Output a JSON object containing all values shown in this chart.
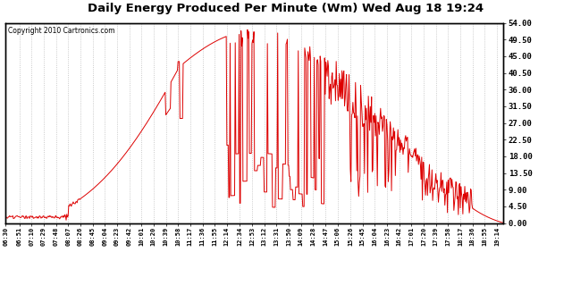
{
  "title": "Daily Energy Produced Per Minute (Wm) Wed Aug 18 19:24",
  "copyright": "Copyright 2010 Cartronics.com",
  "line_color": "#dd0000",
  "background_color": "#ffffff",
  "plot_bg_color": "#ffffff",
  "grid_color": "#bbbbbb",
  "ylim": [
    0,
    54.0
  ],
  "yticks": [
    0.0,
    4.5,
    9.0,
    13.5,
    18.0,
    22.5,
    27.0,
    31.5,
    36.0,
    40.5,
    45.0,
    49.5,
    54.0
  ],
  "xtick_labels": [
    "06:30",
    "06:51",
    "07:10",
    "07:29",
    "07:48",
    "08:07",
    "08:26",
    "08:45",
    "09:04",
    "09:23",
    "09:42",
    "10:01",
    "10:20",
    "10:39",
    "10:58",
    "11:17",
    "11:36",
    "11:55",
    "12:14",
    "12:34",
    "12:53",
    "13:12",
    "13:31",
    "13:50",
    "14:09",
    "14:28",
    "14:47",
    "15:06",
    "15:26",
    "15:45",
    "16:04",
    "16:23",
    "16:42",
    "17:01",
    "17:20",
    "17:39",
    "17:58",
    "18:17",
    "18:36",
    "18:55",
    "19:14"
  ]
}
